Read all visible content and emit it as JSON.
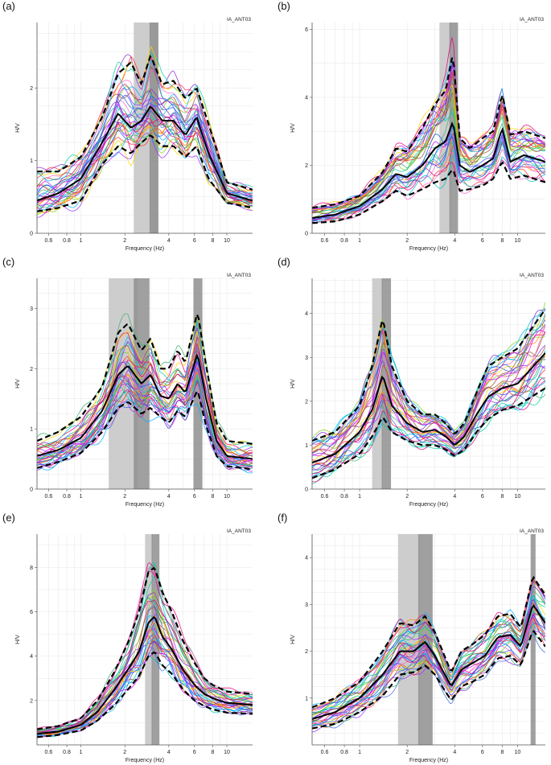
{
  "figure": {
    "panels_count": 6
  },
  "chart_data": [
    {
      "type": "line",
      "panel_label": "(a)",
      "site": "IA_ANT03",
      "xlabel": "Frequency (Hz)",
      "ylabel": "H/V",
      "x_scale": "log",
      "xlim": [
        0.5,
        15
      ],
      "ylim": [
        0,
        2.9
      ],
      "x_tick_labels": [
        "0.6",
        "0.8",
        "1",
        "2",
        "4",
        "6",
        "8",
        "10"
      ],
      "y_tick_labels": [
        "0",
        "1",
        "2"
      ],
      "peak_bands": [
        {
          "from": 2.3,
          "to": 3.35,
          "shade": "light"
        },
        {
          "from": 2.95,
          "to": 3.4,
          "shade": "dark"
        }
      ],
      "series": [
        {
          "role": "mean",
          "style": "solid",
          "x": [
            0.5,
            0.7,
            1,
            1.4,
            1.8,
            2.2,
            2.6,
            3.0,
            3.6,
            4.3,
            5.2,
            6.2,
            7.5,
            10,
            15
          ],
          "y": [
            0.45,
            0.55,
            0.75,
            1.25,
            1.65,
            1.45,
            1.55,
            1.75,
            1.55,
            1.55,
            1.35,
            1.6,
            1.1,
            0.55,
            0.45
          ]
        },
        {
          "role": "mean+std",
          "style": "dashed",
          "x": [
            0.5,
            0.7,
            1,
            1.4,
            1.8,
            2.2,
            2.6,
            3.0,
            3.6,
            4.3,
            5.2,
            6.2,
            7.5,
            10,
            15
          ],
          "y": [
            0.85,
            0.85,
            1.05,
            1.6,
            2.2,
            2.35,
            2.05,
            2.45,
            2.05,
            2.1,
            1.85,
            2.0,
            1.5,
            0.7,
            0.6
          ]
        },
        {
          "role": "mean-std",
          "style": "dashed",
          "x": [
            0.5,
            0.7,
            1,
            1.4,
            1.8,
            2.2,
            2.6,
            3.0,
            3.6,
            4.3,
            5.2,
            6.2,
            7.5,
            10,
            15
          ],
          "y": [
            0.3,
            0.35,
            0.45,
            0.95,
            1.2,
            1.1,
            1.25,
            1.35,
            1.2,
            1.2,
            1.05,
            1.2,
            0.75,
            0.42,
            0.35
          ]
        }
      ]
    },
    {
      "type": "line",
      "panel_label": "(b)",
      "site": "IA_ANT03",
      "xlabel": "Frequency (Hz)",
      "ylabel": "H/V",
      "x_scale": "log",
      "xlim": [
        0.5,
        15
      ],
      "ylim": [
        0,
        6.2
      ],
      "x_tick_labels": [
        "0.6",
        "0.8",
        "1",
        "2",
        "4",
        "6",
        "8",
        "10"
      ],
      "y_tick_labels": [
        "0",
        "2",
        "4",
        "6"
      ],
      "peak_bands": [
        {
          "from": 3.2,
          "to": 3.8,
          "shade": "light"
        },
        {
          "from": 3.7,
          "to": 4.2,
          "shade": "dark"
        }
      ],
      "series": [
        {
          "role": "mean",
          "style": "solid",
          "x": [
            0.5,
            0.7,
            1,
            1.4,
            1.7,
            2.0,
            2.5,
            3.0,
            3.5,
            3.9,
            4.3,
            5,
            6,
            7,
            8,
            9,
            11,
            15
          ],
          "y": [
            0.45,
            0.55,
            0.8,
            1.3,
            1.75,
            1.65,
            2.0,
            2.5,
            2.7,
            3.3,
            2.0,
            1.8,
            2.0,
            2.2,
            3.1,
            2.1,
            2.3,
            2.1
          ]
        },
        {
          "role": "mean+std",
          "style": "dashed",
          "x": [
            0.5,
            0.7,
            1,
            1.4,
            1.7,
            2.0,
            2.5,
            3.0,
            3.5,
            3.9,
            4.3,
            5,
            6,
            7,
            8,
            9,
            11,
            15
          ],
          "y": [
            0.75,
            0.85,
            1.1,
            1.8,
            2.5,
            2.4,
            3.1,
            3.8,
            4.2,
            5.3,
            2.8,
            2.5,
            2.8,
            3.0,
            4.1,
            2.9,
            3.0,
            2.8
          ]
        },
        {
          "role": "mean-std",
          "style": "dashed",
          "x": [
            0.5,
            0.7,
            1,
            1.4,
            1.7,
            2.0,
            2.5,
            3.0,
            3.5,
            3.9,
            4.3,
            5,
            6,
            7,
            8,
            9,
            11,
            15
          ],
          "y": [
            0.3,
            0.35,
            0.55,
            0.95,
            1.25,
            1.1,
            1.3,
            1.5,
            1.6,
            1.9,
            1.25,
            1.3,
            1.4,
            1.6,
            2.1,
            1.6,
            1.7,
            1.5
          ]
        }
      ]
    },
    {
      "type": "line",
      "panel_label": "(c)",
      "site": "IA_ANT03",
      "xlabel": "Frequency (Hz)",
      "ylabel": "H/V",
      "x_scale": "log",
      "xlim": [
        0.5,
        15
      ],
      "ylim": [
        0,
        3.5
      ],
      "x_tick_labels": [
        "0.6",
        "0.8",
        "1",
        "2",
        "4",
        "6",
        "8",
        "10"
      ],
      "y_tick_labels": [
        "0",
        "1",
        "2",
        "3"
      ],
      "peak_bands": [
        {
          "from": 1.55,
          "to": 2.45,
          "shade": "light"
        },
        {
          "from": 2.3,
          "to": 2.95,
          "shade": "dark"
        },
        {
          "from": 5.9,
          "to": 6.8,
          "shade": "dark"
        }
      ],
      "series": [
        {
          "role": "mean",
          "style": "solid",
          "x": [
            0.5,
            0.7,
            1,
            1.4,
            1.8,
            2.1,
            2.6,
            3.0,
            3.5,
            4.0,
            4.6,
            5.2,
            6.3,
            7.2,
            8.5,
            10,
            15
          ],
          "y": [
            0.55,
            0.65,
            0.85,
            1.3,
            1.9,
            2.05,
            1.75,
            1.9,
            1.55,
            1.5,
            1.75,
            1.6,
            2.25,
            1.5,
            0.8,
            0.55,
            0.5
          ]
        },
        {
          "role": "mean+std",
          "style": "dashed",
          "x": [
            0.5,
            0.7,
            1,
            1.4,
            1.8,
            2.1,
            2.6,
            3.0,
            3.5,
            4.0,
            4.6,
            5.2,
            6.3,
            7.2,
            8.5,
            10,
            15
          ],
          "y": [
            0.8,
            0.95,
            1.2,
            1.7,
            2.6,
            2.75,
            2.3,
            2.5,
            2.0,
            2.0,
            2.3,
            2.1,
            2.95,
            2.05,
            1.1,
            0.8,
            0.75
          ]
        },
        {
          "role": "mean-std",
          "style": "dashed",
          "x": [
            0.5,
            0.7,
            1,
            1.4,
            1.8,
            2.1,
            2.6,
            3.0,
            3.5,
            4.0,
            4.6,
            5.2,
            6.3,
            7.2,
            8.5,
            10,
            15
          ],
          "y": [
            0.35,
            0.45,
            0.6,
            0.95,
            1.35,
            1.45,
            1.25,
            1.35,
            1.2,
            1.1,
            1.3,
            1.2,
            1.65,
            1.05,
            0.55,
            0.38,
            0.33
          ]
        }
      ]
    },
    {
      "type": "line",
      "panel_label": "(d)",
      "site": "IA_ANT03",
      "xlabel": "Frequency (Hz)",
      "ylabel": "H/V",
      "x_scale": "log",
      "xlim": [
        0.5,
        15
      ],
      "ylim": [
        0,
        4.8
      ],
      "x_tick_labels": [
        "0.6",
        "0.8",
        "1",
        "2",
        "4",
        "6",
        "8",
        "10"
      ],
      "y_tick_labels": [
        "0",
        "1",
        "2",
        "3",
        "4"
      ],
      "peak_bands": [
        {
          "from": 1.2,
          "to": 1.4,
          "shade": "light"
        },
        {
          "from": 1.38,
          "to": 1.58,
          "shade": "dark"
        }
      ],
      "series": [
        {
          "role": "mean",
          "style": "solid",
          "x": [
            0.5,
            0.7,
            1,
            1.2,
            1.4,
            1.6,
            2.0,
            2.5,
            3.0,
            3.5,
            4.0,
            4.6,
            5.5,
            6.5,
            8,
            10,
            15
          ],
          "y": [
            0.6,
            0.8,
            1.3,
            1.8,
            2.6,
            1.9,
            1.5,
            1.3,
            1.35,
            1.2,
            1.0,
            1.2,
            1.7,
            2.1,
            2.3,
            2.4,
            3.1
          ]
        },
        {
          "role": "mean+std",
          "style": "dashed",
          "x": [
            0.5,
            0.7,
            1,
            1.2,
            1.4,
            1.6,
            2.0,
            2.5,
            3.0,
            3.5,
            4.0,
            4.6,
            5.5,
            6.5,
            8,
            10,
            15
          ],
          "y": [
            1.1,
            1.3,
            1.9,
            2.8,
            3.9,
            2.8,
            2.0,
            1.7,
            1.7,
            1.5,
            1.25,
            1.5,
            2.2,
            2.8,
            3.0,
            3.2,
            4.1
          ]
        },
        {
          "role": "mean-std",
          "style": "dashed",
          "x": [
            0.5,
            0.7,
            1,
            1.2,
            1.4,
            1.6,
            2.0,
            2.5,
            3.0,
            3.5,
            4.0,
            4.6,
            5.5,
            6.5,
            8,
            10,
            15
          ],
          "y": [
            0.25,
            0.45,
            0.8,
            1.2,
            1.65,
            1.3,
            1.1,
            1.0,
            1.0,
            0.9,
            0.75,
            0.9,
            1.3,
            1.6,
            1.8,
            1.9,
            2.3
          ]
        }
      ]
    },
    {
      "type": "line",
      "panel_label": "(e)",
      "site": "IA_ANT03",
      "xlabel": "Frequency (Hz)",
      "ylabel": "H/V",
      "x_scale": "log",
      "xlim": [
        0.5,
        15
      ],
      "ylim": [
        0,
        9.5
      ],
      "x_tick_labels": [
        "0.6",
        "0.8",
        "1",
        "2",
        "4",
        "6",
        "8",
        "10"
      ],
      "y_tick_labels": [
        "2",
        "4",
        "6",
        "8"
      ],
      "peak_bands": [
        {
          "from": 2.75,
          "to": 3.1,
          "shade": "light"
        },
        {
          "from": 3.05,
          "to": 3.45,
          "shade": "dark"
        }
      ],
      "series": [
        {
          "role": "mean",
          "style": "solid",
          "x": [
            0.5,
            0.7,
            1,
            1.3,
            1.7,
            2.1,
            2.5,
            2.9,
            3.2,
            3.6,
            4.2,
            5,
            6,
            7,
            8,
            10,
            15
          ],
          "y": [
            0.5,
            0.6,
            0.9,
            1.5,
            2.5,
            3.4,
            4.2,
            5.5,
            5.8,
            4.9,
            4.3,
            3.4,
            2.7,
            2.3,
            2.1,
            1.9,
            1.8
          ]
        },
        {
          "role": "mean+std",
          "style": "dashed",
          "x": [
            0.5,
            0.7,
            1,
            1.3,
            1.7,
            2.1,
            2.5,
            2.9,
            3.2,
            3.6,
            4.2,
            5,
            6,
            7,
            8,
            10,
            15
          ],
          "y": [
            0.7,
            0.85,
            1.2,
            2.0,
            3.3,
            4.6,
            6.0,
            7.8,
            8.0,
            6.9,
            6.0,
            4.7,
            3.7,
            3.0,
            2.7,
            2.4,
            2.3
          ]
        },
        {
          "role": "mean-std",
          "style": "dashed",
          "x": [
            0.5,
            0.7,
            1,
            1.3,
            1.7,
            2.1,
            2.5,
            2.9,
            3.2,
            3.6,
            4.2,
            5,
            6,
            7,
            8,
            10,
            15
          ],
          "y": [
            0.35,
            0.45,
            0.65,
            1.1,
            1.8,
            2.5,
            3.1,
            4.0,
            4.2,
            3.6,
            3.2,
            2.5,
            2.0,
            1.75,
            1.6,
            1.45,
            1.4
          ]
        }
      ]
    },
    {
      "type": "line",
      "panel_label": "(f)",
      "site": "IA_ANT03",
      "xlabel": "Frequency (Hz)",
      "ylabel": "H/V",
      "x_scale": "log",
      "xlim": [
        0.5,
        15
      ],
      "ylim": [
        0,
        4.5
      ],
      "x_tick_labels": [
        "0.6",
        "0.8",
        "1",
        "2",
        "4",
        "6",
        "8",
        "10"
      ],
      "y_tick_labels": [
        "1",
        "2",
        "3",
        "4"
      ],
      "peak_bands": [
        {
          "from": 1.75,
          "to": 2.4,
          "shade": "light"
        },
        {
          "from": 2.35,
          "to": 2.9,
          "shade": "dark"
        },
        {
          "from": 12.1,
          "to": 13.0,
          "shade": "dark"
        }
      ],
      "series": [
        {
          "role": "mean",
          "style": "solid",
          "x": [
            0.5,
            0.7,
            1,
            1.4,
            1.8,
            2.2,
            2.6,
            3.0,
            3.4,
            3.8,
            4.4,
            5.2,
            6.2,
            7.5,
            9,
            10.5,
            12.5,
            15
          ],
          "y": [
            0.55,
            0.7,
            1.0,
            1.5,
            2.0,
            2.0,
            2.2,
            1.9,
            1.55,
            1.25,
            1.6,
            1.75,
            1.9,
            2.3,
            2.35,
            2.1,
            3.0,
            2.6
          ]
        },
        {
          "role": "mean+std",
          "style": "dashed",
          "x": [
            0.5,
            0.7,
            1,
            1.4,
            1.8,
            2.2,
            2.6,
            3.0,
            3.4,
            3.8,
            4.4,
            5.2,
            6.2,
            7.5,
            9,
            10.5,
            12.5,
            15
          ],
          "y": [
            0.8,
            1.0,
            1.35,
            2.0,
            2.6,
            2.55,
            2.75,
            2.4,
            1.95,
            1.55,
            2.0,
            2.15,
            2.35,
            2.75,
            2.8,
            2.5,
            3.6,
            3.2
          ]
        },
        {
          "role": "mean-std",
          "style": "dashed",
          "x": [
            0.5,
            0.7,
            1,
            1.4,
            1.8,
            2.2,
            2.6,
            3.0,
            3.4,
            3.8,
            4.4,
            5.2,
            6.2,
            7.5,
            9,
            10.5,
            12.5,
            15
          ],
          "y": [
            0.35,
            0.45,
            0.7,
            1.05,
            1.5,
            1.55,
            1.7,
            1.5,
            1.2,
            0.95,
            1.25,
            1.35,
            1.5,
            1.85,
            1.9,
            1.7,
            2.45,
            2.1
          ]
        }
      ]
    }
  ]
}
